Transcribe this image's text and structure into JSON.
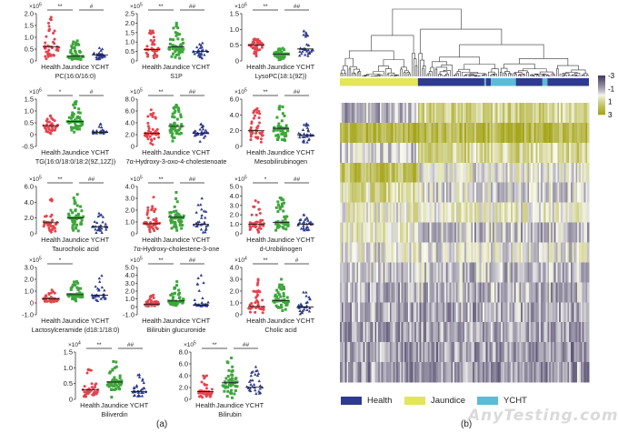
{
  "figure": {
    "label_a": "(a)",
    "label_b": "(b)",
    "watermark": "AnyTesting.com"
  },
  "colors": {
    "Health": "#e5434d",
    "Jaundice": "#3ea63c",
    "YCHT": "#2d3a8a",
    "legend_Health": "#2f3b8c",
    "legend_Jaundice": "#e4e55a",
    "legend_YCHT": "#5bbcd6"
  },
  "chart_data": [
    {
      "type": "scatter",
      "groups": [
        "Health",
        "Jaundice",
        "YCHT"
      ],
      "unit_prefix": "×10",
      "panels": [
        {
          "name": "PC(16:0/16:0)",
          "exp": "6",
          "yticks": [
            "0",
            "0.5",
            "1.0",
            "1.5",
            "2.0"
          ],
          "mean": [
            0.6,
            0.2,
            0.25
          ],
          "max": [
            1.85,
            0.85,
            0.55
          ],
          "sig": [
            "**",
            "#"
          ]
        },
        {
          "name": "S1P",
          "exp": "5",
          "yticks": [
            "0",
            "0.5",
            "1.0",
            "1.5",
            "2.0",
            "2.5"
          ],
          "mean": [
            0.6,
            0.75,
            0.5
          ],
          "max": [
            1.6,
            2.0,
            0.95
          ],
          "sig": [
            "**",
            "##"
          ]
        },
        {
          "name": "LysoPC(18:1(9Z))",
          "exp": "6",
          "yticks": [
            "0",
            "0.5",
            "1.0",
            "1.5"
          ],
          "mean": [
            0.5,
            0.22,
            0.38
          ],
          "max": [
            0.7,
            0.4,
            0.95
          ],
          "sig": [
            "**",
            "##"
          ]
        },
        {
          "name": "TG(16:0/18:0/18:2(9Z,12Z))",
          "exp": "6",
          "yticks": [
            "-0.5",
            "0",
            "0.5",
            "1.0",
            "1.5"
          ],
          "mean": [
            0.38,
            0.55,
            0.1
          ],
          "max": [
            0.8,
            1.4,
            0.45
          ],
          "sig": [
            "*",
            "#"
          ]
        },
        {
          "name": "7α-Hydroxy-3-oxo-4-cholestenoate",
          "exp": "5",
          "yticks": [
            "0",
            "2.0",
            "4.0",
            "6.0",
            "8.0"
          ],
          "mean": [
            2.2,
            3.4,
            2.2
          ],
          "max": [
            6.2,
            7.0,
            3.8
          ],
          "sig": [
            "**",
            "##"
          ]
        },
        {
          "name": "Mesobilirubinogen",
          "exp": "5",
          "yticks": [
            "0",
            "2.0",
            "4.0",
            "6.0"
          ],
          "mean": [
            2.0,
            2.3,
            1.4
          ],
          "max": [
            4.8,
            5.1,
            2.9
          ],
          "sig": [
            "**",
            "##"
          ]
        },
        {
          "name": "Taurocholic acid",
          "exp": "5",
          "yticks": [
            "0",
            "2.0",
            "4.0",
            "6.0"
          ],
          "mean": [
            1.4,
            2.0,
            0.9
          ],
          "max": [
            4.4,
            5.0,
            2.6
          ],
          "sig": [
            "**",
            "##"
          ]
        },
        {
          "name": "7α-Hydroxy-cholestene-3-one",
          "exp": "5",
          "yticks": [
            "0",
            "1.0",
            "2.0",
            "3.0",
            "4.0"
          ],
          "mean": [
            0.85,
            1.4,
            0.8
          ],
          "max": [
            3.1,
            3.5,
            3.0
          ],
          "sig": [
            "**",
            "##"
          ]
        },
        {
          "name": "d-Urobilinogen",
          "exp": "5",
          "yticks": [
            "0",
            "1.0",
            "2.0",
            "3.0",
            "4.0",
            "5.0"
          ],
          "mean": [
            1.0,
            1.2,
            1.0
          ],
          "max": [
            3.5,
            3.8,
            2.0
          ],
          "sig": [
            "*",
            "##"
          ]
        },
        {
          "name": "Lactosylceramide (d18:1/18:0)",
          "exp": "5",
          "yticks": [
            "-1.0",
            "0",
            "1.0",
            "2.0",
            "3.0"
          ],
          "mean": [
            0.35,
            0.7,
            0.65
          ],
          "max": [
            1.1,
            1.8,
            2.3
          ],
          "sig": [
            "*",
            ""
          ]
        },
        {
          "name": "Bilirubin glucuronide",
          "exp": "5",
          "yticks": [
            "-1.0",
            "0",
            "1.0",
            "2.0",
            "3.0",
            "4.0",
            "5.0"
          ],
          "mean": [
            0.35,
            0.75,
            0.25
          ],
          "max": [
            1.5,
            3.2,
            4.0
          ],
          "sig": [
            "**",
            "##"
          ]
        },
        {
          "name": "Cholic acid",
          "exp": "4",
          "yticks": [
            "0",
            "1.0",
            "2.0",
            "3.0",
            "4.0"
          ],
          "mean": [
            0.7,
            1.2,
            0.65
          ],
          "max": [
            3.0,
            3.0,
            1.9
          ],
          "sig": [
            "**",
            "#"
          ]
        },
        {
          "name": "Biliverdin",
          "exp": "4",
          "yticks": [
            "0",
            "0.5",
            "1.0",
            "1.5"
          ],
          "mean": [
            0.3,
            0.55,
            0.25
          ],
          "max": [
            0.95,
            1.2,
            0.78
          ],
          "sig": [
            "**",
            "##"
          ]
        },
        {
          "name": "Bilirubin",
          "exp": "5",
          "yticks": [
            "0",
            "2.0",
            "4.0",
            "6.0",
            "8.0"
          ],
          "mean": [
            1.3,
            2.8,
            2.1
          ],
          "max": [
            4.0,
            7.0,
            5.5
          ],
          "sig": [
            "**",
            "##"
          ]
        }
      ]
    },
    {
      "type": "heatmap",
      "n_rows": 14,
      "n_samples": 150,
      "colorbar_ticks": [
        "-3",
        "-1",
        "1",
        "3"
      ],
      "colorbar_range": [
        -3,
        3
      ],
      "sample_groups": [
        {
          "group": "Jaundice",
          "from": 0,
          "to": 47
        },
        {
          "group": "Health",
          "from": 47,
          "to": 87
        },
        {
          "group": "YCHT",
          "from": 87,
          "to": 88
        },
        {
          "group": "Health",
          "from": 88,
          "to": 91
        },
        {
          "group": "YCHT",
          "from": 91,
          "to": 106
        },
        {
          "group": "Health",
          "from": 106,
          "to": 122
        },
        {
          "group": "YCHT",
          "from": 122,
          "to": 125
        },
        {
          "group": "Health",
          "from": 125,
          "to": 150
        }
      ],
      "row_trend_jaundice_vs_other": [
        [
          -0.8,
          1.2
        ],
        [
          2.2,
          2.0
        ],
        [
          -0.5,
          1.0
        ],
        [
          1.8,
          0.0
        ],
        [
          1.0,
          -0.3
        ],
        [
          0.3,
          0.3
        ],
        [
          0.5,
          -0.6
        ],
        [
          0.0,
          -0.1
        ],
        [
          -0.5,
          -0.7
        ],
        [
          -0.7,
          -0.8
        ],
        [
          -1.0,
          -1.0
        ],
        [
          -1.1,
          -1.1
        ],
        [
          -1.2,
          -1.2
        ],
        [
          -1.2,
          -1.2
        ]
      ],
      "legend": [
        "Health",
        "Jaundice",
        "YCHT"
      ]
    }
  ]
}
